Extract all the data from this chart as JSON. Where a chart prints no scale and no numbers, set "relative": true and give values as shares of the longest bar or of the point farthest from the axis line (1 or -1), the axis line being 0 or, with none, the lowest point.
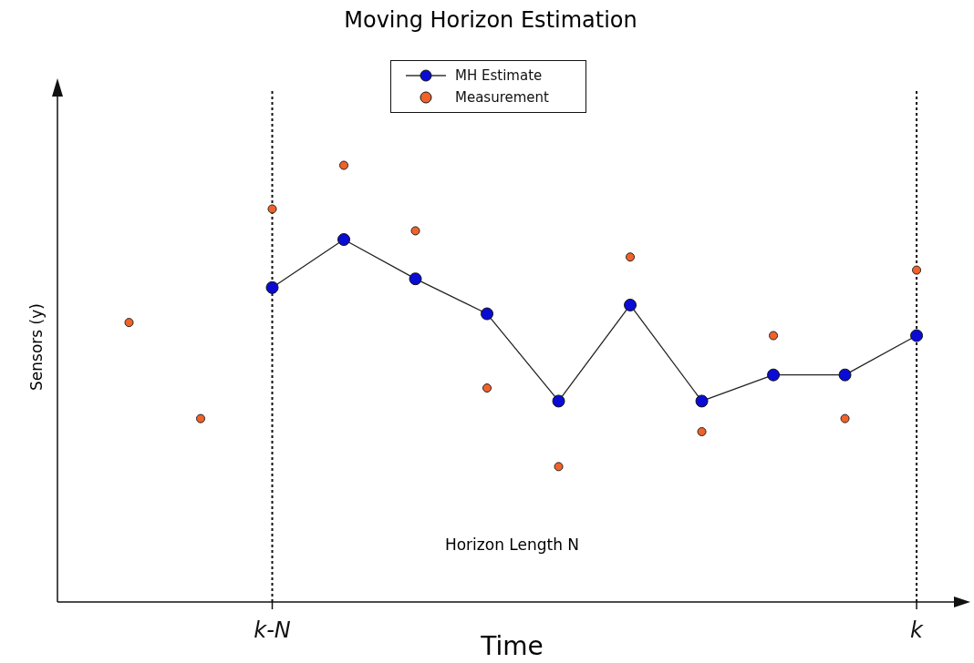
{
  "chart_data": {
    "type": "line",
    "title": "Moving Horizon Estimation",
    "xlabel": "Time",
    "ylabel": "Sensors (y)",
    "relative": true,
    "categories": [
      null,
      null,
      "k-N",
      null,
      null,
      null,
      null,
      null,
      null,
      null,
      null,
      "k"
    ],
    "series": [
      {
        "name": "MH Estimate",
        "type": "line",
        "color": "#0b0bd6",
        "values": [
          null,
          null,
          0.72,
          0.83,
          0.74,
          0.66,
          0.46,
          0.68,
          0.46,
          0.52,
          0.52,
          0.61
        ]
      },
      {
        "name": "Measurement",
        "type": "scatter",
        "color": "#f0622a",
        "values": [
          0.64,
          0.42,
          0.9,
          1.0,
          0.85,
          0.49,
          0.31,
          0.79,
          0.39,
          0.61,
          0.42,
          0.76
        ]
      }
    ],
    "ref_lines": [
      {
        "axis": "x",
        "value": "k-N",
        "line_style": "dotted",
        "color": "#111111"
      },
      {
        "axis": "x",
        "value": "k",
        "line_style": "dotted",
        "color": "#111111"
      }
    ],
    "annotations": [
      "Horizon Length N"
    ],
    "legend": "top",
    "marker": "circle",
    "line_style": "solid",
    "grid": false
  }
}
